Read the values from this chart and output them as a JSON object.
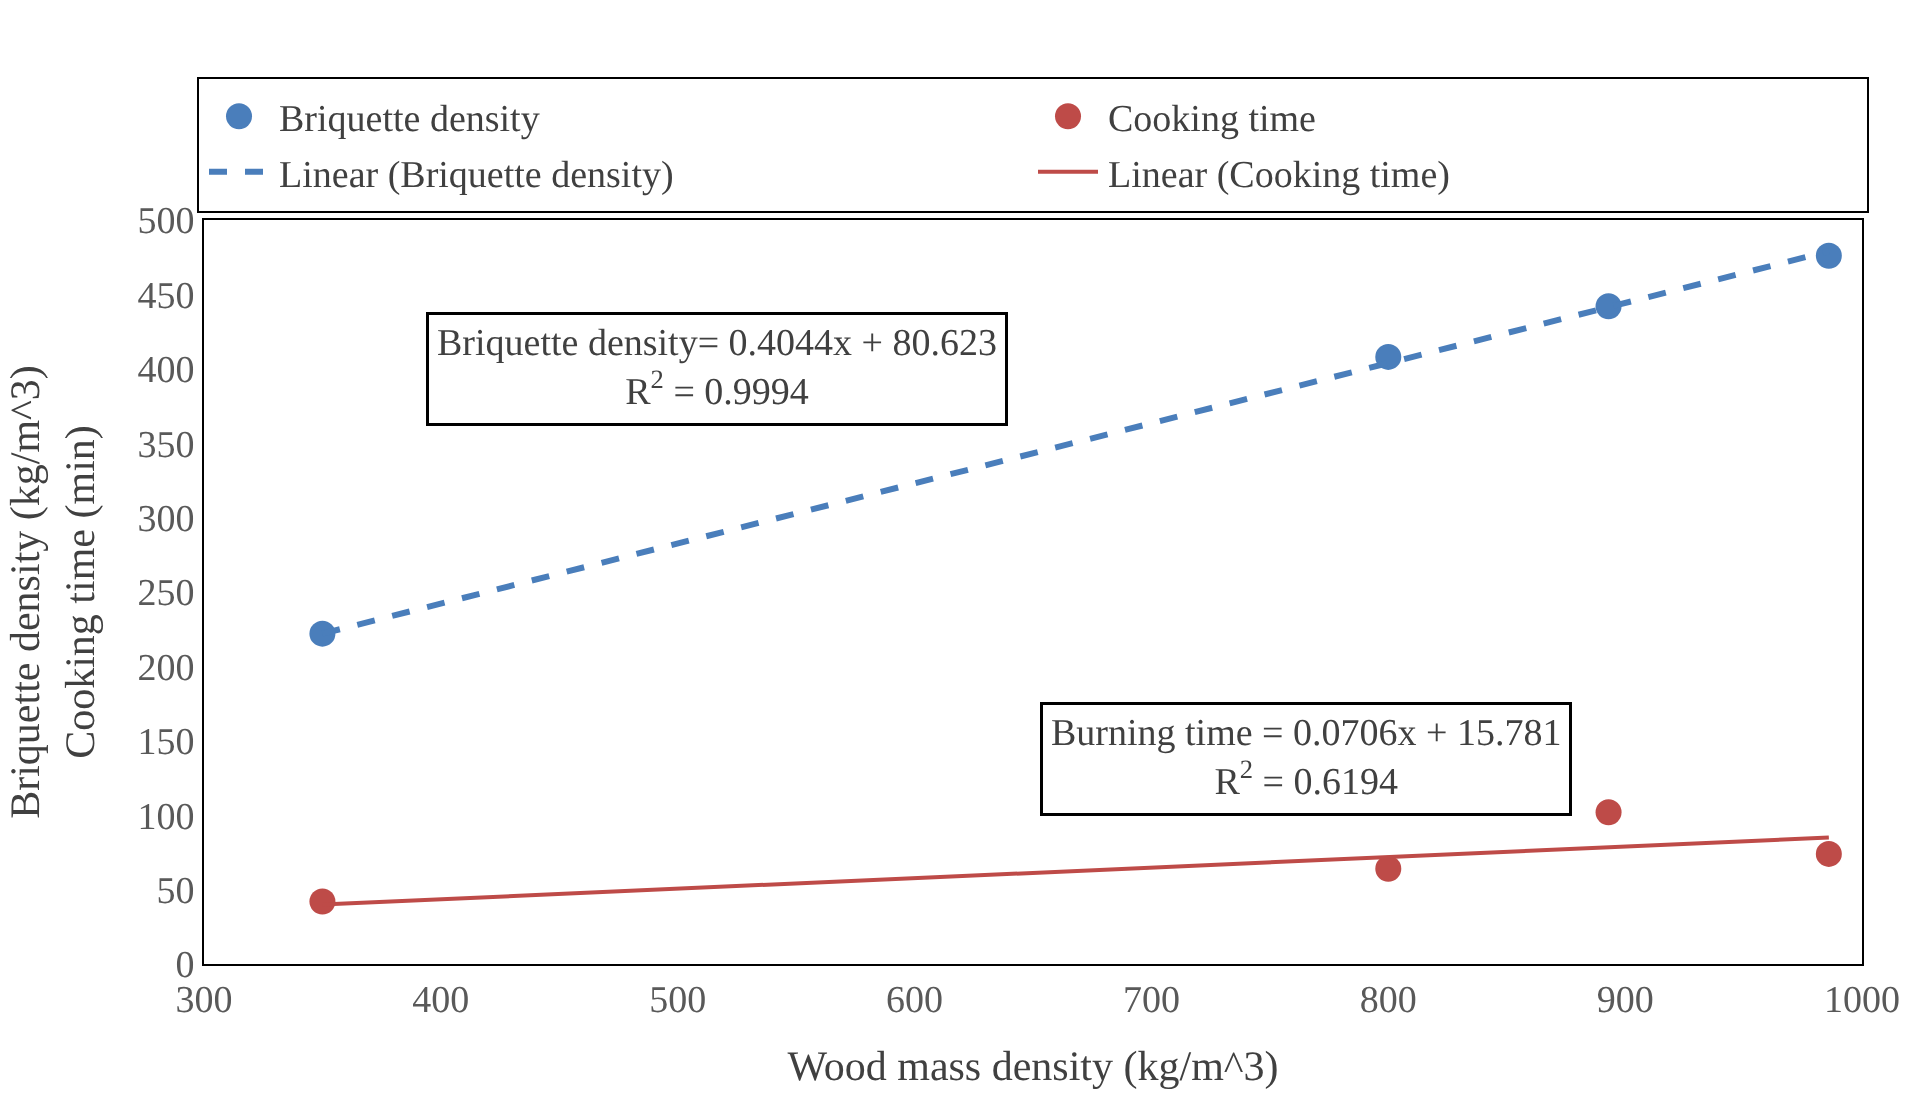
{
  "chart_data": {
    "type": "scatter",
    "xlabel": "Wood mass density (kg/m^3)",
    "ylabel": "Briquette density (kg/m^3)\nCooking time (min)",
    "xlim": [
      300,
      1000
    ],
    "xticks": [
      300,
      400,
      500,
      600,
      700,
      800,
      900,
      1000
    ],
    "ylim": [
      0,
      500
    ],
    "yticks": [
      0,
      50,
      100,
      150,
      200,
      250,
      300,
      350,
      400,
      450,
      500
    ],
    "legend": "top",
    "series": [
      {
        "name": "Briquette density",
        "marker": "circle",
        "color": "#4a7ebb",
        "x": [
          350,
          800,
          893,
          986
        ],
        "values": [
          222,
          408,
          442,
          476
        ]
      },
      {
        "name": "Cooking time",
        "marker": "circle",
        "color": "#be4b48",
        "x": [
          350,
          800,
          893,
          986
        ],
        "values": [
          42,
          64,
          102,
          74
        ]
      },
      {
        "name": "Linear (Briquette density)",
        "type": "line",
        "line_style": "dashed",
        "color": "#4a7ebb",
        "x": [
          350,
          986
        ],
        "values": [
          222,
          479
        ]
      },
      {
        "name": "Linear (Cooking time)",
        "type": "line",
        "line_style": "solid",
        "color": "#be4b48",
        "x": [
          350,
          986
        ],
        "values": [
          40,
          85
        ]
      }
    ],
    "annotations": [
      "Briquette density= 0.4044x + 80.623\nR$^{2}$ = 0.9994",
      "Burning time = 0.0706x + 15.781\nR$^{2}$ = 0.6194"
    ]
  }
}
